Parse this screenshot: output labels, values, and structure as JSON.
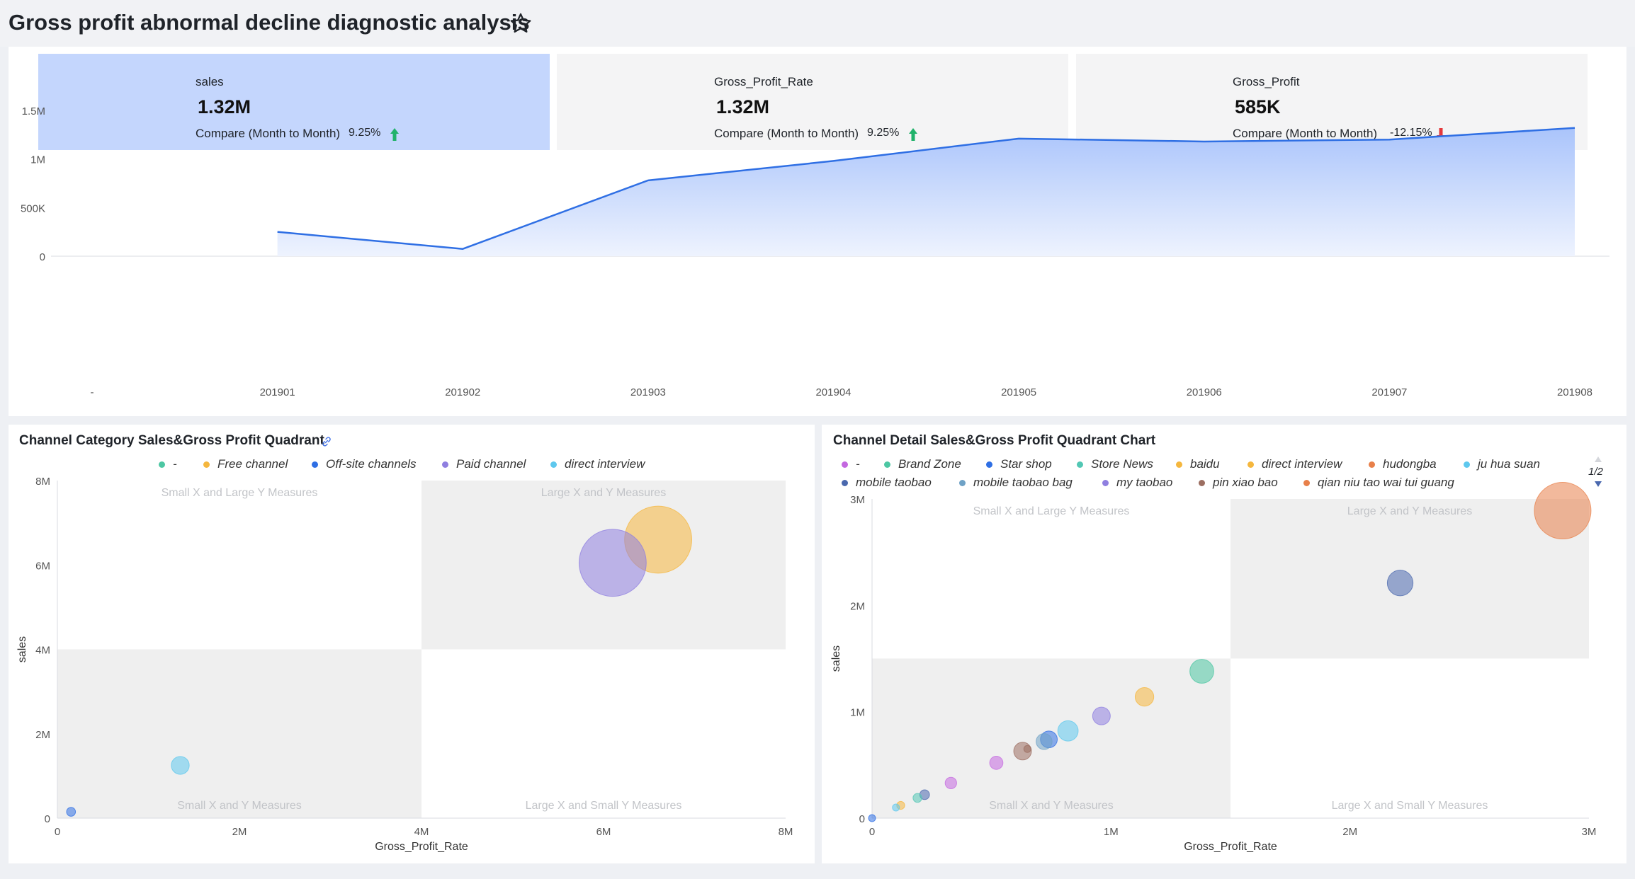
{
  "header": {
    "title": "Gross profit abnormal decline diagnostic analysis",
    "star_icon": "star-outline-icon"
  },
  "kpis": [
    {
      "label": "sales",
      "value": "1.32M",
      "compare_label": "Compare (Month to Month)",
      "delta": "9.25%",
      "direction": "up",
      "color": "#20b26a",
      "active": true
    },
    {
      "label": "Gross_Profit_Rate",
      "value": "1.32M",
      "compare_label": "Compare (Month to Month)",
      "delta": "9.25%",
      "direction": "up",
      "color": "#20b26a",
      "active": false
    },
    {
      "label": "Gross_Profit",
      "value": "585K",
      "compare_label": "Compare (Month to Month)",
      "delta": "-12.15%",
      "direction": "down",
      "color": "#e5383b",
      "active": false
    }
  ],
  "colors": {
    "accent": "#2f6fe4",
    "area_top": "#aac4fb",
    "quadrant_fill": "#efefef",
    "card_active": "#c4d6fd",
    "card": "#f4f4f5",
    "up": "#20b26a",
    "down": "#e5383b"
  },
  "chart_data": [
    {
      "type": "area",
      "x": [
        "-",
        "201901",
        "201902",
        "201903",
        "201904",
        "201905",
        "201906",
        "201907",
        "201908"
      ],
      "series": [
        {
          "values": [
            null,
            250000,
            75000,
            780000,
            980000,
            1210000,
            1180000,
            1200000,
            1320000
          ]
        }
      ],
      "y_ticks": [
        "0",
        "500K",
        "1M",
        "1.5M"
      ],
      "ylim": [
        0,
        1500000
      ],
      "grid": false
    },
    {
      "type": "scatter",
      "title": "Channel Category Sales&Gross Profit Quadrant",
      "xlabel": "Gross_Profit_Rate",
      "ylabel": "sales",
      "xlim": [
        0,
        8000000
      ],
      "ylim": [
        0,
        8000000
      ],
      "x_ticks": [
        "0",
        "2M",
        "4M",
        "6M",
        "8M"
      ],
      "y_ticks": [
        "0",
        "2M",
        "4M",
        "6M",
        "8M"
      ],
      "split": {
        "x": 4000000,
        "y": 4000000
      },
      "quadrant_labels": {
        "top_left": "Small X and Large Y Measures",
        "top_right": "Large X and Y Measures",
        "bottom_left": "Small X and Y Measures",
        "bottom_right": "Large X and Small Y Measures"
      },
      "legend_position": "top",
      "series": [
        {
          "name": "-",
          "color": "#4dc7a3",
          "points": []
        },
        {
          "name": "Free channel",
          "color": "#f5b73e",
          "points": [
            {
              "x": 6600000,
              "y": 6600000,
              "size": 3.0
            }
          ]
        },
        {
          "name": "Off-site channels",
          "color": "#2f6fe4",
          "points": [
            {
              "x": 150000,
              "y": 150000,
              "size": 0.4
            }
          ]
        },
        {
          "name": "Paid channel",
          "color": "#8f7fe0",
          "points": [
            {
              "x": 6100000,
              "y": 6050000,
              "size": 3.0
            }
          ]
        },
        {
          "name": "direct interview",
          "color": "#5ec8ee",
          "points": [
            {
              "x": 1350000,
              "y": 1250000,
              "size": 0.8
            }
          ]
        }
      ]
    },
    {
      "type": "scatter",
      "title": "Channel Detail Sales&Gross Profit Quadrant Chart",
      "xlabel": "Gross_Profit_Rate",
      "ylabel": "sales",
      "xlim": [
        0,
        3000000
      ],
      "ylim": [
        0,
        3000000
      ],
      "x_ticks": [
        "0",
        "1M",
        "2M",
        "3M"
      ],
      "y_ticks": [
        "0",
        "1M",
        "2M",
        "3M"
      ],
      "split": {
        "x": 1500000,
        "y": 1500000
      },
      "quadrant_labels": {
        "top_left": "Small X and Large Y Measures",
        "top_right": "Large X and Y Measures",
        "bottom_left": "Small X and Y Measures",
        "bottom_right": "Large X and Small Y Measures"
      },
      "legend_position": "top",
      "legend_page": "1/2",
      "series": [
        {
          "name": "-",
          "color": "#c468e0",
          "points": [
            {
              "x": 520000,
              "y": 520000,
              "size": 0.75
            }
          ]
        },
        {
          "name": "Brand Zone",
          "color": "#4dc7a3",
          "points": [
            {
              "x": 1380000,
              "y": 1380000,
              "size": 1.35
            }
          ]
        },
        {
          "name": "Star shop",
          "color": "#2f6fe4",
          "points": [
            {
              "x": 740000,
              "y": 740000,
              "size": 0.95
            }
          ]
        },
        {
          "name": "Store News",
          "color": "#52c7b4",
          "points": [
            {
              "x": 190000,
              "y": 190000,
              "size": 0.5
            }
          ]
        },
        {
          "name": "baidu",
          "color": "#f5b73e",
          "points": [
            {
              "x": 1140000,
              "y": 1140000,
              "size": 1.05
            }
          ]
        },
        {
          "name": "direct interview",
          "color": "#f5b73e",
          "points": [
            {
              "x": 120000,
              "y": 120000,
              "size": 0.45
            }
          ]
        },
        {
          "name": "hudongba",
          "color": "#e8804a",
          "points": [
            {
              "x": 2890000,
              "y": 2890000,
              "size": 3.2
            }
          ]
        },
        {
          "name": "ju hua suan",
          "color": "#5ec8ee",
          "points": [
            {
              "x": 820000,
              "y": 820000,
              "size": 1.15
            }
          ]
        },
        {
          "name": "mobile taobao",
          "color": "#4a68ae",
          "points": [
            {
              "x": 2210000,
              "y": 2210000,
              "size": 1.45
            }
          ]
        },
        {
          "name": "mobile taobao bag",
          "color": "#6fa2c6",
          "points": [
            {
              "x": 720000,
              "y": 720000,
              "size": 0.9
            }
          ]
        },
        {
          "name": "my taobao",
          "color": "#8f7fe0",
          "points": [
            {
              "x": 960000,
              "y": 960000,
              "size": 1.0
            }
          ]
        },
        {
          "name": "pin xiao bao",
          "color": "#9c6e61",
          "points": [
            {
              "x": 630000,
              "y": 630000,
              "size": 1.0
            }
          ]
        },
        {
          "name": "qian niu tao wai tui guang",
          "color": "#e8804a",
          "points": []
        }
      ],
      "extra_points": [
        {
          "x": 0,
          "y": 0,
          "size": 0.4,
          "color": "#2f6fe4"
        },
        {
          "x": 100000,
          "y": 100000,
          "size": 0.4,
          "color": "#5ec8ee"
        },
        {
          "x": 220000,
          "y": 220000,
          "size": 0.55,
          "color": "#4a68ae"
        },
        {
          "x": 330000,
          "y": 330000,
          "size": 0.65,
          "color": "#c468e0"
        },
        {
          "x": 650000,
          "y": 650000,
          "size": 0.4,
          "color": "#9c6e61"
        }
      ]
    }
  ]
}
